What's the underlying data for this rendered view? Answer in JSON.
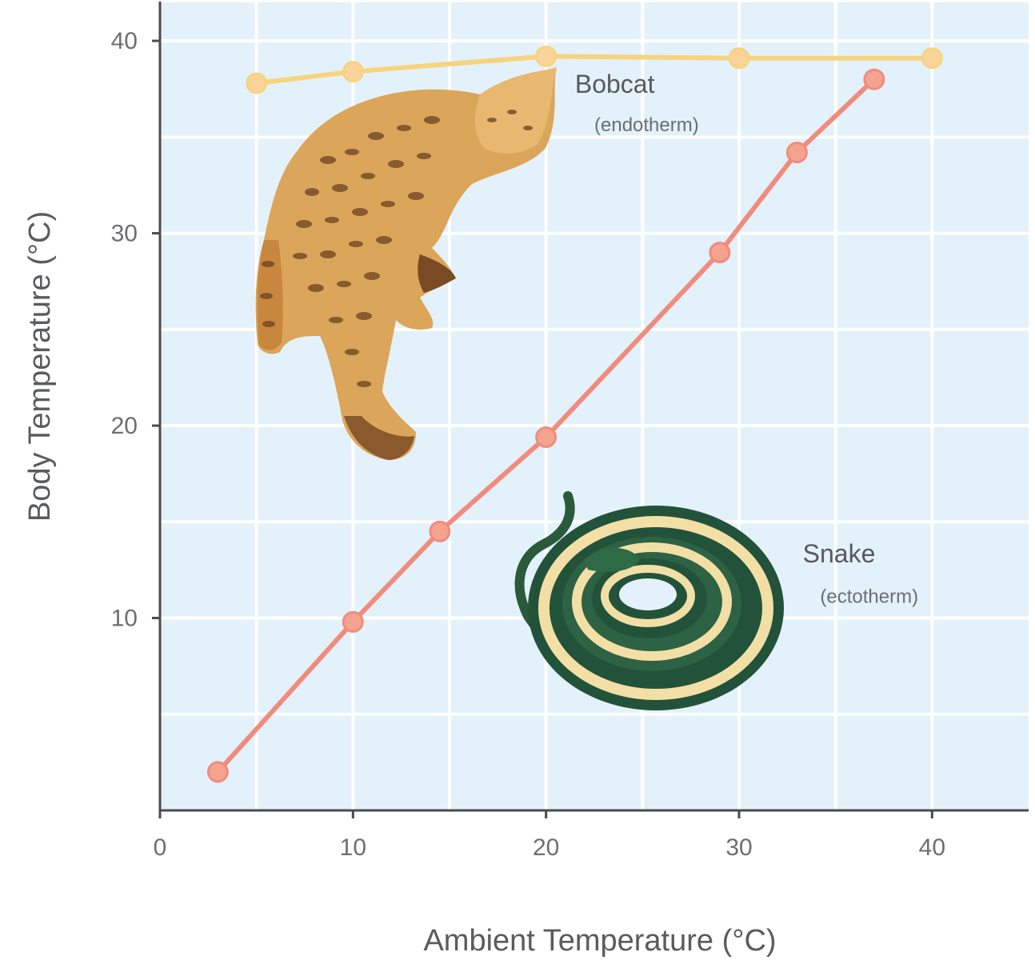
{
  "chart_data": {
    "type": "line",
    "xlabel": "Ambient Temperature (°C)",
    "ylabel": "Body Temperature (°C)",
    "xlim": [
      0,
      45
    ],
    "ylim": [
      0,
      42
    ],
    "x_ticks": [
      "0",
      "10",
      "20",
      "30",
      "40"
    ],
    "y_ticks": [
      "10",
      "20",
      "30",
      "40"
    ],
    "grid": true,
    "series": [
      {
        "name": "Bobcat",
        "note": "(endotherm)",
        "color": "#f7d37e",
        "marker_fill": "#f9d39a",
        "points": [
          [
            5,
            37.8
          ],
          [
            10,
            38.4
          ],
          [
            20,
            39.2
          ],
          [
            30,
            39.1
          ],
          [
            40,
            39.1
          ]
        ]
      },
      {
        "name": "Snake",
        "note": "(ectotherm)",
        "color": "#f08c7e",
        "marker_fill": "#f4a38f",
        "points": [
          [
            3,
            2
          ],
          [
            10,
            9.8
          ],
          [
            14.5,
            14.5
          ],
          [
            20,
            19.4
          ],
          [
            29,
            29
          ],
          [
            33,
            34.2
          ],
          [
            37,
            38
          ]
        ]
      }
    ]
  },
  "colors": {
    "plot_background": "#e3f1fa",
    "grid": "#ffffff",
    "axis": "#4b4b4d"
  }
}
